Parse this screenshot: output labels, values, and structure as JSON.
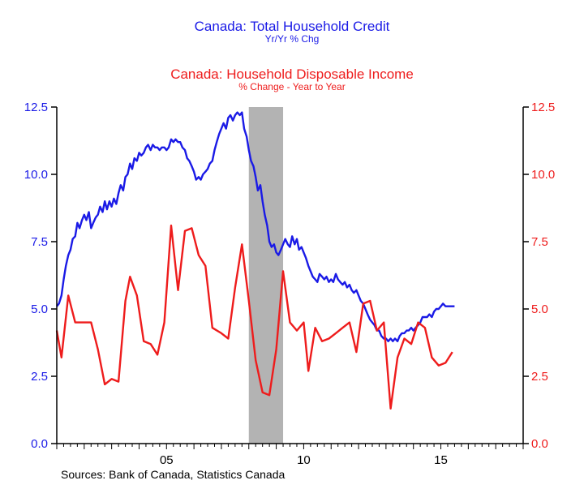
{
  "chart_data": {
    "type": "line",
    "titles": [
      {
        "title": "Canada: Total Household Credit",
        "subtitle": "Yr/Yr % Chg",
        "color": "#1a1ae6"
      },
      {
        "title": "Canada: Household Disposable Income",
        "subtitle": "% Change - Year to Year",
        "color": "#ee1c1c"
      }
    ],
    "source": "Sources:  Bank of Canada, Statistics Canada",
    "x_axis": {
      "range": [
        2001.0,
        2018.0
      ],
      "tick_labels": [
        {
          "x": 2005,
          "label": "05"
        },
        {
          "x": 2010,
          "label": "10"
        },
        {
          "x": 2015,
          "label": "15"
        }
      ]
    },
    "y_axis_left": {
      "range": [
        0.0,
        12.5
      ],
      "ticks": [
        "0.0",
        "2.5",
        "5.0",
        "7.5",
        "10.0",
        "12.5"
      ],
      "color": "#1a1ae6"
    },
    "y_axis_right": {
      "range": [
        0.0,
        12.5
      ],
      "ticks": [
        "0.0",
        "2.5",
        "5.0",
        "7.5",
        "10.0",
        "12.5"
      ],
      "color": "#ee1c1c"
    },
    "recession_shading": [
      {
        "x_start": 2008.0,
        "x_end": 2009.25
      }
    ],
    "series": [
      {
        "name": "Canada: Total Household Credit",
        "color": "#1a1ae6",
        "points": [
          [
            2001.0,
            5.1
          ],
          [
            2001.08,
            5.2
          ],
          [
            2001.17,
            5.5
          ],
          [
            2001.25,
            6.1
          ],
          [
            2001.33,
            6.6
          ],
          [
            2001.42,
            7.0
          ],
          [
            2001.5,
            7.2
          ],
          [
            2001.58,
            7.6
          ],
          [
            2001.67,
            7.7
          ],
          [
            2001.75,
            8.2
          ],
          [
            2001.83,
            8.0
          ],
          [
            2001.92,
            8.3
          ],
          [
            2002.0,
            8.5
          ],
          [
            2002.08,
            8.3
          ],
          [
            2002.17,
            8.6
          ],
          [
            2002.25,
            8.0
          ],
          [
            2002.33,
            8.2
          ],
          [
            2002.42,
            8.4
          ],
          [
            2002.5,
            8.5
          ],
          [
            2002.58,
            8.8
          ],
          [
            2002.67,
            8.6
          ],
          [
            2002.75,
            9.0
          ],
          [
            2002.83,
            8.7
          ],
          [
            2002.92,
            9.0
          ],
          [
            2003.0,
            8.8
          ],
          [
            2003.08,
            9.1
          ],
          [
            2003.17,
            8.9
          ],
          [
            2003.25,
            9.3
          ],
          [
            2003.33,
            9.6
          ],
          [
            2003.42,
            9.4
          ],
          [
            2003.5,
            9.9
          ],
          [
            2003.58,
            10.0
          ],
          [
            2003.67,
            10.4
          ],
          [
            2003.75,
            10.2
          ],
          [
            2003.83,
            10.6
          ],
          [
            2003.92,
            10.5
          ],
          [
            2004.0,
            10.8
          ],
          [
            2004.08,
            10.7
          ],
          [
            2004.17,
            10.8
          ],
          [
            2004.25,
            11.0
          ],
          [
            2004.33,
            11.1
          ],
          [
            2004.42,
            10.9
          ],
          [
            2004.5,
            11.1
          ],
          [
            2004.58,
            11.0
          ],
          [
            2004.67,
            11.0
          ],
          [
            2004.75,
            10.9
          ],
          [
            2004.83,
            11.0
          ],
          [
            2004.92,
            11.0
          ],
          [
            2005.0,
            10.9
          ],
          [
            2005.08,
            11.0
          ],
          [
            2005.17,
            11.3
          ],
          [
            2005.25,
            11.2
          ],
          [
            2005.33,
            11.3
          ],
          [
            2005.42,
            11.2
          ],
          [
            2005.5,
            11.2
          ],
          [
            2005.58,
            11.0
          ],
          [
            2005.67,
            10.9
          ],
          [
            2005.75,
            10.6
          ],
          [
            2005.83,
            10.5
          ],
          [
            2005.92,
            10.3
          ],
          [
            2006.0,
            10.1
          ],
          [
            2006.08,
            9.8
          ],
          [
            2006.17,
            9.9
          ],
          [
            2006.25,
            9.8
          ],
          [
            2006.33,
            10.0
          ],
          [
            2006.42,
            10.1
          ],
          [
            2006.5,
            10.2
          ],
          [
            2006.58,
            10.4
          ],
          [
            2006.67,
            10.5
          ],
          [
            2006.75,
            10.9
          ],
          [
            2006.83,
            11.2
          ],
          [
            2006.92,
            11.5
          ],
          [
            2007.0,
            11.7
          ],
          [
            2007.08,
            11.9
          ],
          [
            2007.17,
            11.7
          ],
          [
            2007.25,
            12.1
          ],
          [
            2007.33,
            12.2
          ],
          [
            2007.42,
            12.0
          ],
          [
            2007.5,
            12.2
          ],
          [
            2007.58,
            12.3
          ],
          [
            2007.67,
            12.2
          ],
          [
            2007.75,
            12.3
          ],
          [
            2007.83,
            11.7
          ],
          [
            2007.92,
            11.4
          ],
          [
            2008.0,
            10.9
          ],
          [
            2008.08,
            10.5
          ],
          [
            2008.17,
            10.3
          ],
          [
            2008.25,
            9.9
          ],
          [
            2008.33,
            9.4
          ],
          [
            2008.42,
            9.6
          ],
          [
            2008.5,
            9.0
          ],
          [
            2008.58,
            8.5
          ],
          [
            2008.67,
            8.1
          ],
          [
            2008.75,
            7.5
          ],
          [
            2008.83,
            7.3
          ],
          [
            2008.92,
            7.4
          ],
          [
            2009.0,
            7.1
          ],
          [
            2009.08,
            7.0
          ],
          [
            2009.17,
            7.2
          ],
          [
            2009.25,
            7.4
          ],
          [
            2009.33,
            7.6
          ],
          [
            2009.42,
            7.4
          ],
          [
            2009.5,
            7.3
          ],
          [
            2009.58,
            7.7
          ],
          [
            2009.67,
            7.4
          ],
          [
            2009.75,
            7.6
          ],
          [
            2009.83,
            7.2
          ],
          [
            2009.92,
            7.3
          ],
          [
            2010.0,
            7.1
          ],
          [
            2010.08,
            6.9
          ],
          [
            2010.17,
            6.6
          ],
          [
            2010.25,
            6.4
          ],
          [
            2010.33,
            6.2
          ],
          [
            2010.42,
            6.1
          ],
          [
            2010.5,
            6.0
          ],
          [
            2010.58,
            6.3
          ],
          [
            2010.67,
            6.2
          ],
          [
            2010.75,
            6.1
          ],
          [
            2010.83,
            6.2
          ],
          [
            2010.92,
            6.0
          ],
          [
            2011.0,
            6.1
          ],
          [
            2011.08,
            6.0
          ],
          [
            2011.17,
            6.3
          ],
          [
            2011.25,
            6.1
          ],
          [
            2011.33,
            6.0
          ],
          [
            2011.42,
            5.9
          ],
          [
            2011.5,
            6.0
          ],
          [
            2011.58,
            5.8
          ],
          [
            2011.67,
            5.9
          ],
          [
            2011.75,
            5.7
          ],
          [
            2011.83,
            5.6
          ],
          [
            2011.92,
            5.7
          ],
          [
            2012.0,
            5.5
          ],
          [
            2012.08,
            5.3
          ],
          [
            2012.17,
            5.2
          ],
          [
            2012.25,
            5.0
          ],
          [
            2012.33,
            4.8
          ],
          [
            2012.42,
            4.6
          ],
          [
            2012.5,
            4.5
          ],
          [
            2012.58,
            4.4
          ],
          [
            2012.67,
            4.2
          ],
          [
            2012.75,
            4.2
          ],
          [
            2012.83,
            4.0
          ],
          [
            2012.92,
            3.9
          ],
          [
            2013.0,
            3.9
          ],
          [
            2013.08,
            3.8
          ],
          [
            2013.17,
            3.9
          ],
          [
            2013.25,
            3.8
          ],
          [
            2013.33,
            3.9
          ],
          [
            2013.42,
            3.8
          ],
          [
            2013.5,
            4.0
          ],
          [
            2013.58,
            4.1
          ],
          [
            2013.67,
            4.1
          ],
          [
            2013.75,
            4.2
          ],
          [
            2013.83,
            4.2
          ],
          [
            2013.92,
            4.3
          ],
          [
            2014.0,
            4.2
          ],
          [
            2014.08,
            4.3
          ],
          [
            2014.17,
            4.4
          ],
          [
            2014.25,
            4.5
          ],
          [
            2014.33,
            4.7
          ],
          [
            2014.42,
            4.7
          ],
          [
            2014.5,
            4.7
          ],
          [
            2014.58,
            4.8
          ],
          [
            2014.67,
            4.7
          ],
          [
            2014.75,
            4.9
          ],
          [
            2014.83,
            5.0
          ],
          [
            2014.92,
            5.0
          ],
          [
            2015.0,
            5.1
          ],
          [
            2015.08,
            5.2
          ],
          [
            2015.17,
            5.1
          ],
          [
            2015.25,
            5.1
          ],
          [
            2015.33,
            5.1
          ],
          [
            2015.42,
            5.1
          ],
          [
            2015.5,
            5.1
          ]
        ]
      },
      {
        "name": "Canada: Household Disposable Income",
        "color": "#ee1c1c",
        "points": [
          [
            2001.0,
            4.2
          ],
          [
            2001.17,
            3.2
          ],
          [
            2001.42,
            5.5
          ],
          [
            2001.67,
            4.5
          ],
          [
            2002.0,
            4.5
          ],
          [
            2002.25,
            4.5
          ],
          [
            2002.5,
            3.5
          ],
          [
            2002.75,
            2.2
          ],
          [
            2003.0,
            2.4
          ],
          [
            2003.25,
            2.3
          ],
          [
            2003.5,
            5.3
          ],
          [
            2003.67,
            6.2
          ],
          [
            2003.92,
            5.5
          ],
          [
            2004.17,
            3.8
          ],
          [
            2004.42,
            3.7
          ],
          [
            2004.67,
            3.3
          ],
          [
            2004.92,
            4.5
          ],
          [
            2005.17,
            8.1
          ],
          [
            2005.42,
            5.7
          ],
          [
            2005.67,
            7.9
          ],
          [
            2005.92,
            8.0
          ],
          [
            2006.17,
            7.0
          ],
          [
            2006.42,
            6.6
          ],
          [
            2006.67,
            4.3
          ],
          [
            2007.0,
            4.1
          ],
          [
            2007.25,
            3.9
          ],
          [
            2007.5,
            5.8
          ],
          [
            2007.75,
            7.4
          ],
          [
            2008.0,
            5.3
          ],
          [
            2008.25,
            3.1
          ],
          [
            2008.5,
            1.9
          ],
          [
            2008.75,
            1.8
          ],
          [
            2009.0,
            3.5
          ],
          [
            2009.25,
            6.4
          ],
          [
            2009.5,
            4.5
          ],
          [
            2009.75,
            4.2
          ],
          [
            2010.0,
            4.5
          ],
          [
            2010.17,
            2.7
          ],
          [
            2010.42,
            4.3
          ],
          [
            2010.67,
            3.8
          ],
          [
            2010.92,
            3.9
          ],
          [
            2011.17,
            4.1
          ],
          [
            2011.42,
            4.3
          ],
          [
            2011.67,
            4.5
          ],
          [
            2011.92,
            3.4
          ],
          [
            2012.17,
            5.2
          ],
          [
            2012.42,
            5.3
          ],
          [
            2012.67,
            4.2
          ],
          [
            2012.92,
            4.5
          ],
          [
            2013.17,
            1.3
          ],
          [
            2013.42,
            3.2
          ],
          [
            2013.67,
            3.9
          ],
          [
            2013.92,
            3.7
          ],
          [
            2014.17,
            4.5
          ],
          [
            2014.42,
            4.3
          ],
          [
            2014.67,
            3.2
          ],
          [
            2014.92,
            2.9
          ],
          [
            2015.17,
            3.0
          ],
          [
            2015.42,
            3.4
          ]
        ]
      }
    ]
  }
}
